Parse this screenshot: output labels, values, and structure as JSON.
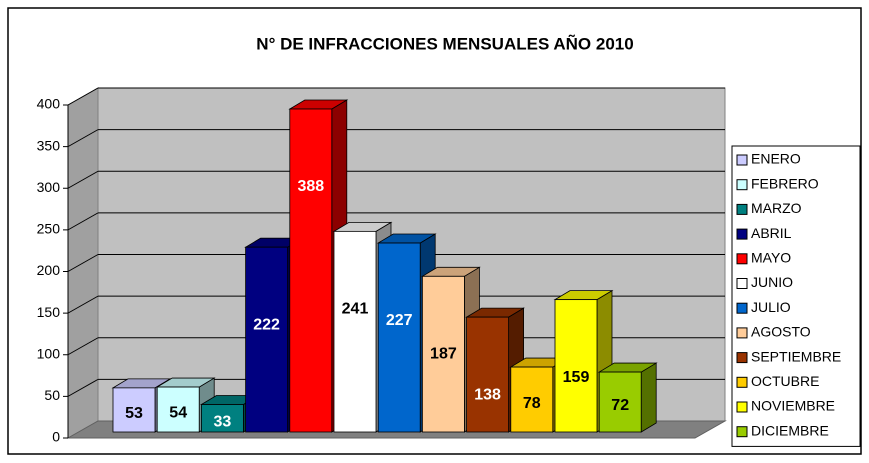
{
  "chart_data": {
    "type": "bar",
    "title": "N° DE INFRACCIONES MENSUALES AÑO 2010",
    "series": [
      {
        "name": "ENERO",
        "color": "#ccccff",
        "values": [
          53
        ]
      },
      {
        "name": "FEBRERO",
        "color": "#ccffff",
        "values": [
          54
        ]
      },
      {
        "name": "MARZO",
        "color": "#008080",
        "values": [
          33
        ]
      },
      {
        "name": "ABRIL",
        "color": "#000080",
        "values": [
          222
        ]
      },
      {
        "name": "MAYO",
        "color": "#ff0000",
        "values": [
          388
        ]
      },
      {
        "name": "JUNIO",
        "color": "#ffffff",
        "values": [
          241
        ]
      },
      {
        "name": "JULIO",
        "color": "#0066cc",
        "values": [
          227
        ]
      },
      {
        "name": "AGOSTO",
        "color": "#ffcc99",
        "values": [
          187
        ]
      },
      {
        "name": "SEPTIEMBRE",
        "color": "#993300",
        "values": [
          138
        ]
      },
      {
        "name": "OCTUBRE",
        "color": "#ffcc00",
        "values": [
          78
        ]
      },
      {
        "name": "NOVIEMBRE",
        "color": "#ffff00",
        "values": [
          159
        ]
      },
      {
        "name": "DICIEMBRE",
        "color": "#99cc00",
        "values": [
          72
        ]
      }
    ],
    "ylim": [
      0,
      400
    ],
    "yticks": [
      0,
      50,
      100,
      150,
      200,
      250,
      300,
      350,
      400
    ],
    "grid": true,
    "legend": "right"
  }
}
